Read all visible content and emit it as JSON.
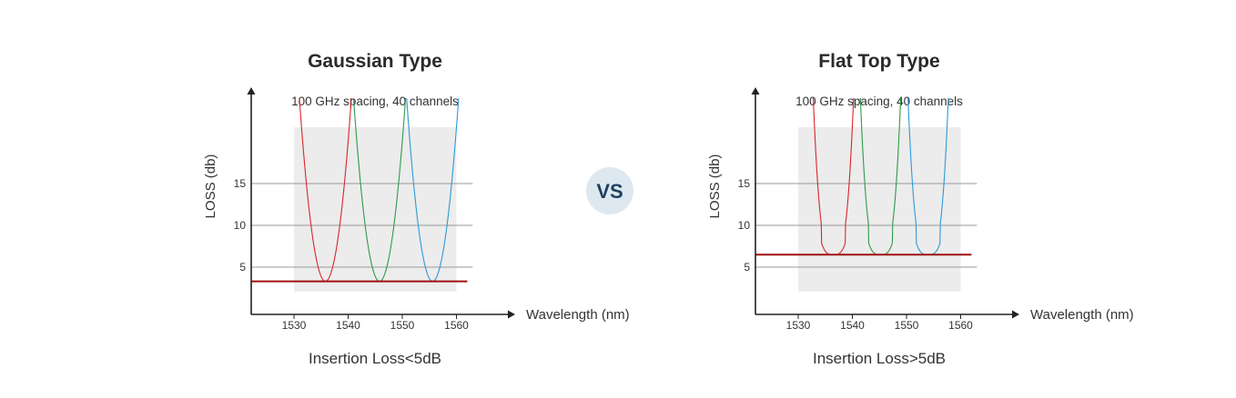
{
  "vs_label": "VS",
  "colors": {
    "axis": "#222222",
    "grid": "#999999",
    "band": "#ececec",
    "threshold": "#a01010",
    "vs_circle": "#dde8f1",
    "vs_text": "#1f3f5f"
  },
  "chart_data": [
    {
      "type": "line",
      "title": "Gaussian Type",
      "subtitle": "100 GHz spacing, 40 channels",
      "xlabel": "Wavelength (nm)",
      "ylabel": "LOSS (db)",
      "footer": "Insertion Loss<5dB",
      "x_ticks": [
        1530,
        1540,
        1550,
        1560
      ],
      "y_ticks": [
        5,
        10,
        15
      ],
      "xlim": [
        1521.5,
        1562.5
      ],
      "ylim": [
        -0.3,
        27
      ],
      "band": [
        1530,
        1560
      ],
      "threshold": 3.3,
      "grid": true,
      "series": [
        {
          "color": "#d8262b",
          "shape": "gaussian",
          "center": 1535.8,
          "min": 3.3
        },
        {
          "color": "#2e9a4a",
          "shape": "gaussian",
          "center": 1545.8,
          "min": 3.3
        },
        {
          "color": "#2b9ad8",
          "shape": "gaussian",
          "center": 1555.6,
          "min": 3.3
        }
      ]
    },
    {
      "type": "line",
      "title": "Flat Top Type",
      "subtitle": "100 GHz spacing, 40 channels",
      "xlabel": "Wavelength (nm)",
      "ylabel": "LOSS (db)",
      "footer": "Insertion Loss>5dB",
      "x_ticks": [
        1530,
        1540,
        1550,
        1560
      ],
      "y_ticks": [
        5,
        10,
        15
      ],
      "xlim": [
        1521.5,
        1562.5
      ],
      "ylim": [
        -0.3,
        27
      ],
      "band": [
        1530,
        1560
      ],
      "threshold": 6.5,
      "grid": true,
      "series": [
        {
          "color": "#d8262b",
          "shape": "flat-top",
          "center": 1536.5,
          "min": 6.5
        },
        {
          "color": "#2e9a4a",
          "shape": "flat-top",
          "center": 1545.2,
          "min": 6.5
        },
        {
          "color": "#2b9ad8",
          "shape": "flat-top",
          "center": 1554.0,
          "min": 6.5
        }
      ]
    }
  ]
}
